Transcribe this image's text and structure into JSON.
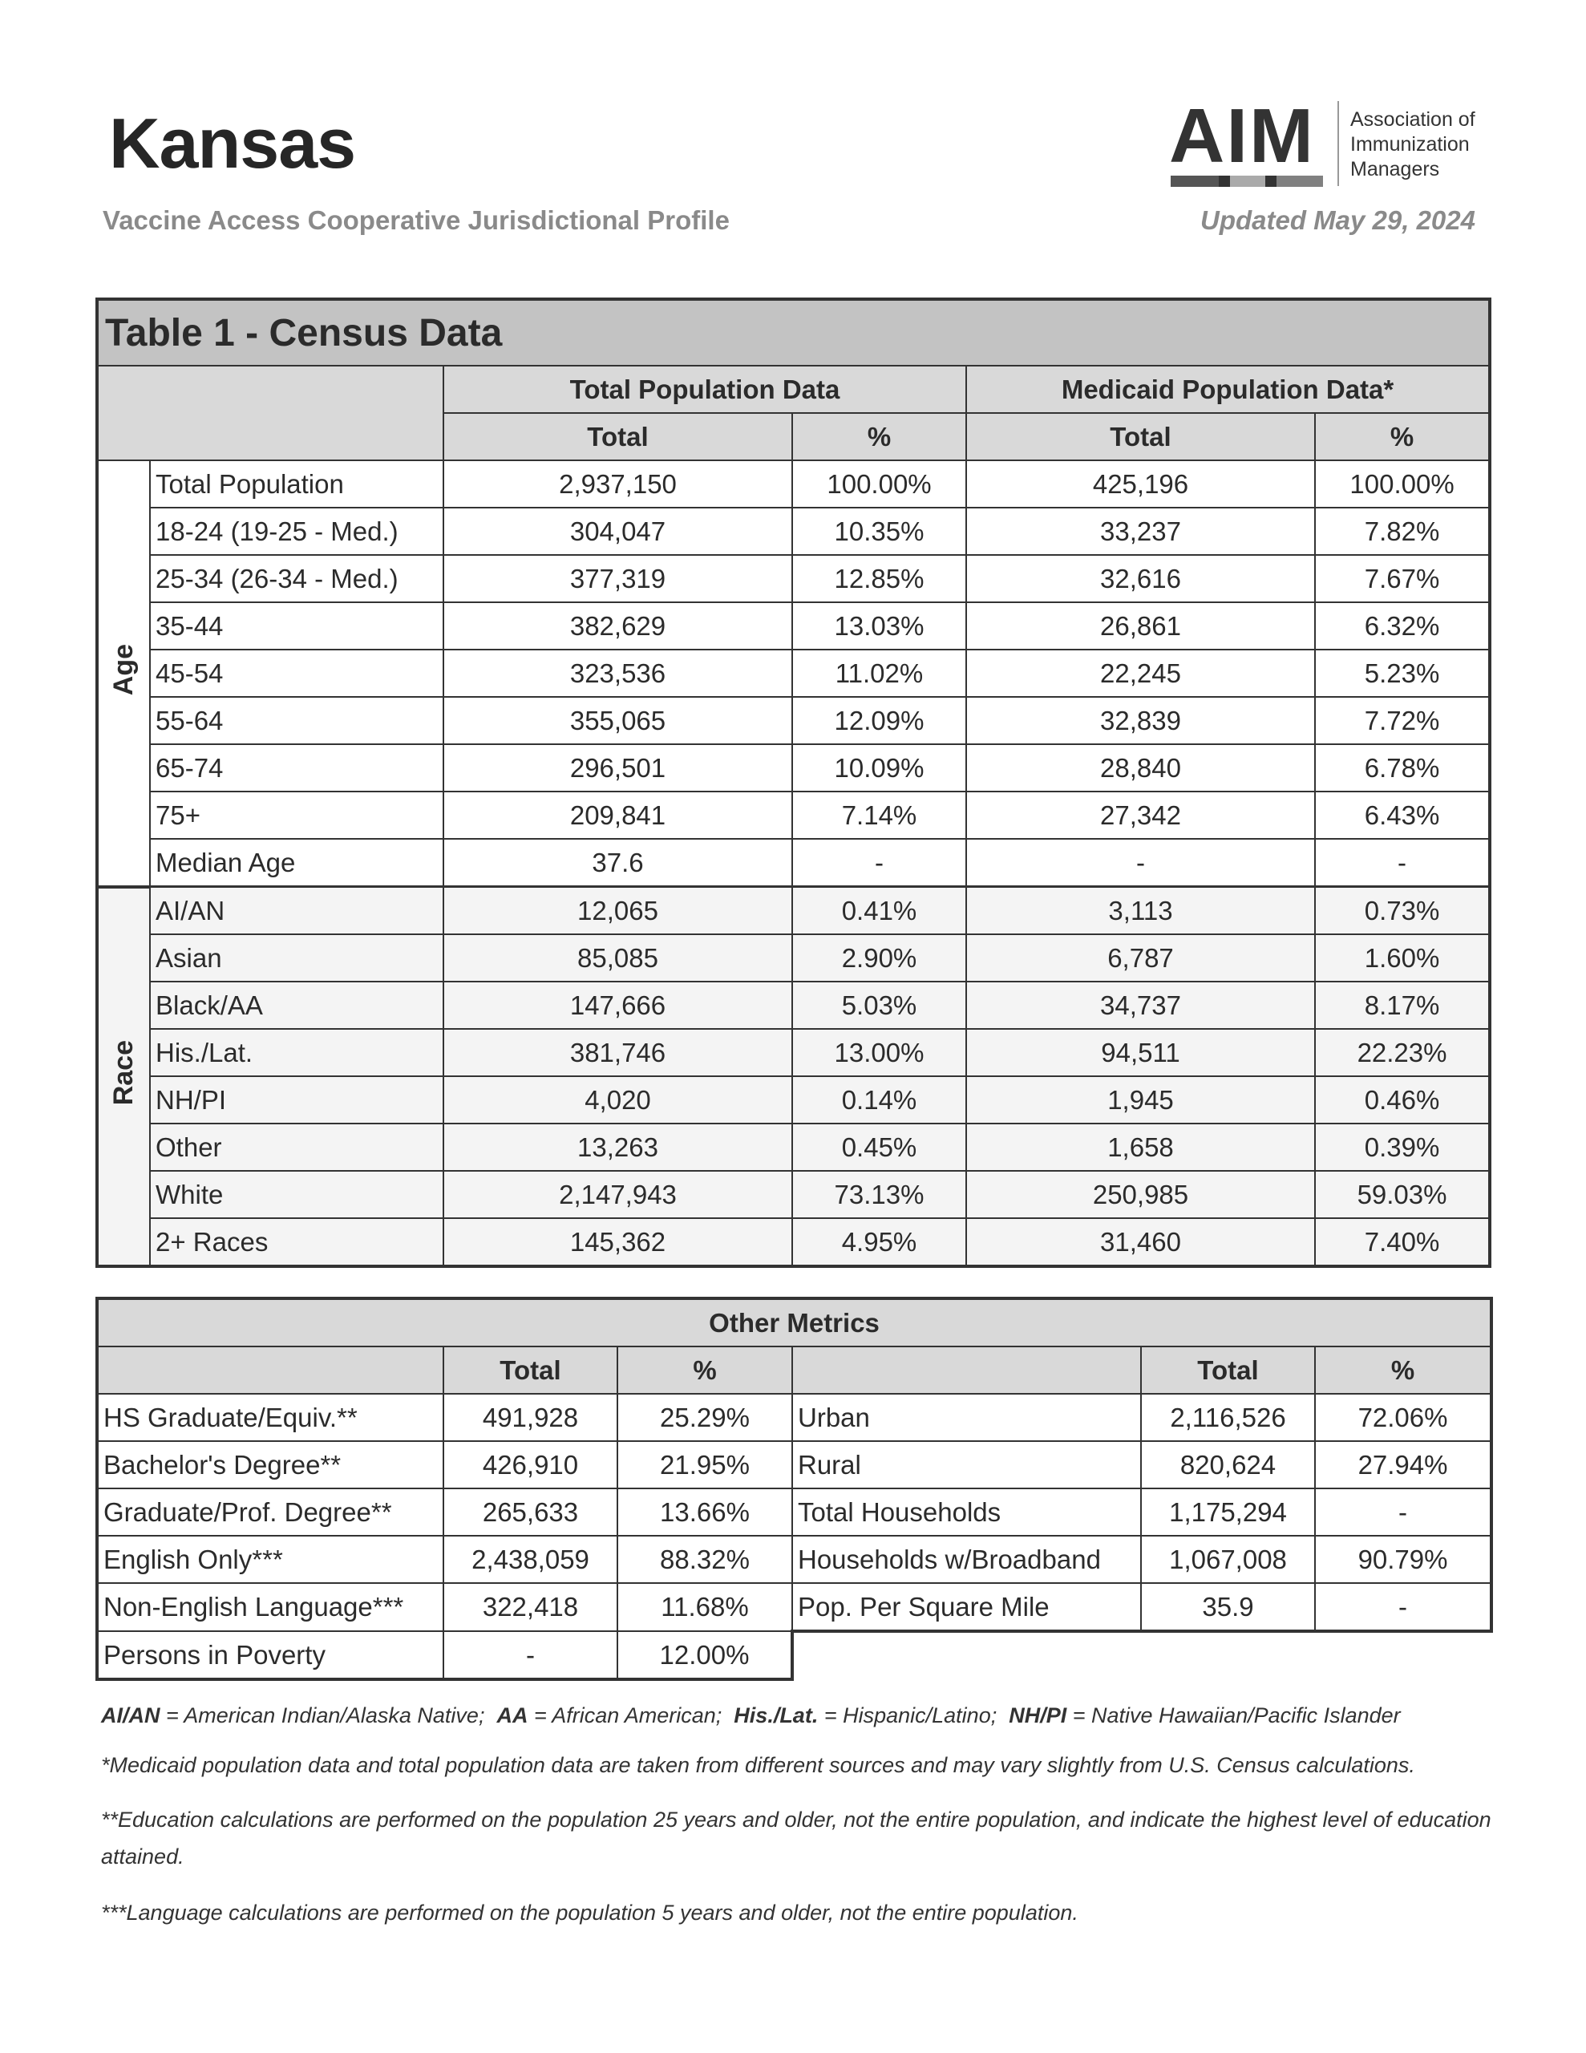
{
  "header": {
    "title": "Kansas",
    "subtitle": "Vaccine Access Cooperative Jurisdictional Profile",
    "updated": "Updated May 29, 2024",
    "logo": {
      "mark": "AIM",
      "lines": [
        "Association of",
        "Immunization",
        "Managers"
      ],
      "bar_colors": [
        "#555555",
        "#333333",
        "#aaaaaa",
        "#333333",
        "#808080"
      ]
    }
  },
  "table1": {
    "title": "Table 1 - Census Data",
    "group_headers": [
      "Total Population Data",
      "Medicaid Population Data*"
    ],
    "sub_headers": [
      "Total",
      "%",
      "Total",
      "%"
    ],
    "age": {
      "label": "Age",
      "rows": [
        [
          "Total Population",
          "2,937,150",
          "100.00%",
          "425,196",
          "100.00%"
        ],
        [
          "18-24 (19-25 - Med.)",
          "304,047",
          "10.35%",
          "33,237",
          "7.82%"
        ],
        [
          "25-34 (26-34 - Med.)",
          "377,319",
          "12.85%",
          "32,616",
          "7.67%"
        ],
        [
          "35-44",
          "382,629",
          "13.03%",
          "26,861",
          "6.32%"
        ],
        [
          "45-54",
          "323,536",
          "11.02%",
          "22,245",
          "5.23%"
        ],
        [
          "55-64",
          "355,065",
          "12.09%",
          "32,839",
          "7.72%"
        ],
        [
          "65-74",
          "296,501",
          "10.09%",
          "28,840",
          "6.78%"
        ],
        [
          "75+",
          "209,841",
          "7.14%",
          "27,342",
          "6.43%"
        ],
        [
          "Median Age",
          "37.6",
          "-",
          "-",
          "-"
        ]
      ]
    },
    "race": {
      "label": "Race",
      "rows": [
        [
          "AI/AN",
          "12,065",
          "0.41%",
          "3,113",
          "0.73%"
        ],
        [
          "Asian",
          "85,085",
          "2.90%",
          "6,787",
          "1.60%"
        ],
        [
          "Black/AA",
          "147,666",
          "5.03%",
          "34,737",
          "8.17%"
        ],
        [
          "His./Lat.",
          "381,746",
          "13.00%",
          "94,511",
          "22.23%"
        ],
        [
          "NH/PI",
          "4,020",
          "0.14%",
          "1,945",
          "0.46%"
        ],
        [
          "Other",
          "13,263",
          "0.45%",
          "1,658",
          "0.39%"
        ],
        [
          "White",
          "2,147,943",
          "73.13%",
          "250,985",
          "59.03%"
        ],
        [
          "2+ Races",
          "145,362",
          "4.95%",
          "31,460",
          "7.40%"
        ]
      ]
    }
  },
  "other_metrics": {
    "title": "Other Metrics",
    "sub_headers": [
      "Total",
      "%",
      "Total",
      "%"
    ],
    "left_rows": [
      [
        "HS Graduate/Equiv.**",
        "491,928",
        "25.29%"
      ],
      [
        "Bachelor's Degree**",
        "426,910",
        "21.95%"
      ],
      [
        "Graduate/Prof. Degree**",
        "265,633",
        "13.66%"
      ],
      [
        "English Only***",
        "2,438,059",
        "88.32%"
      ],
      [
        "Non-English Language***",
        "322,418",
        "11.68%"
      ],
      [
        "Persons in Poverty",
        "-",
        "12.00%"
      ]
    ],
    "right_rows": [
      [
        "Urban",
        "2,116,526",
        "72.06%"
      ],
      [
        "Rural",
        "820,624",
        "27.94%"
      ],
      [
        "Total Households",
        "1,175,294",
        "-"
      ],
      [
        "Households w/Broadband",
        "1,067,008",
        "90.79%"
      ],
      [
        "Pop. Per Square Mile",
        "35.9",
        "-"
      ]
    ]
  },
  "footnotes": {
    "abbreviations": [
      {
        "abbr": "AI/AN",
        "meaning": " = American Indian/Alaska Native;  "
      },
      {
        "abbr": "AA",
        "meaning": " = African American;  "
      },
      {
        "abbr": "His./Lat.",
        "meaning": " = Hispanic/Latino;  "
      },
      {
        "abbr": "NH/PI",
        "meaning": " = Native Hawaiian/Pacific Islander"
      }
    ],
    "medicaid": "*Medicaid population data and total population data are taken from different sources and may vary slightly from U.S. Census calculations.",
    "education": "**Education calculations are performed on the population 25 years and older, not the entire population, and indicate the highest level of education attained.",
    "language": "***Language calculations are performed on the population 5 years and older, not the entire population."
  }
}
